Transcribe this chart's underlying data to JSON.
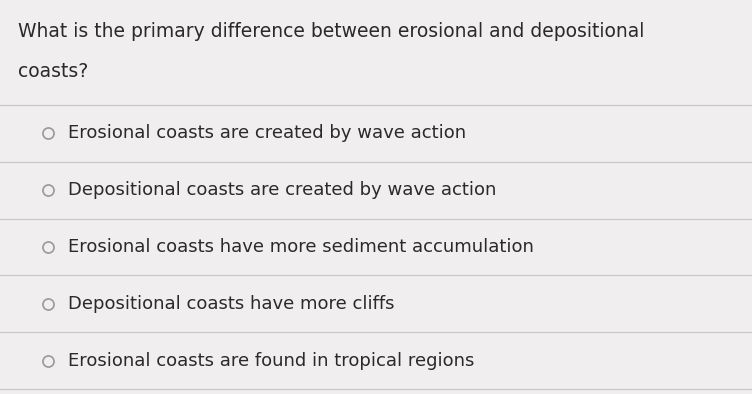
{
  "question_line1": "What is the primary difference between erosional and depositional",
  "question_line2": "coasts?",
  "options": [
    "Erosional coasts are created by wave action",
    "Depositional coasts are created by wave action",
    "Erosional coasts have more sediment accumulation",
    "Depositional coasts have more cliffs",
    "Erosional coasts are found in tropical regions"
  ],
  "background_color": "#f0eeee",
  "text_color": "#2a2a2a",
  "line_color": "#c8c8c8",
  "circle_edge_color": "#999999",
  "question_fontsize": 13.5,
  "option_fontsize": 13.0,
  "fig_width": 7.52,
  "fig_height": 3.94,
  "dpi": 100
}
